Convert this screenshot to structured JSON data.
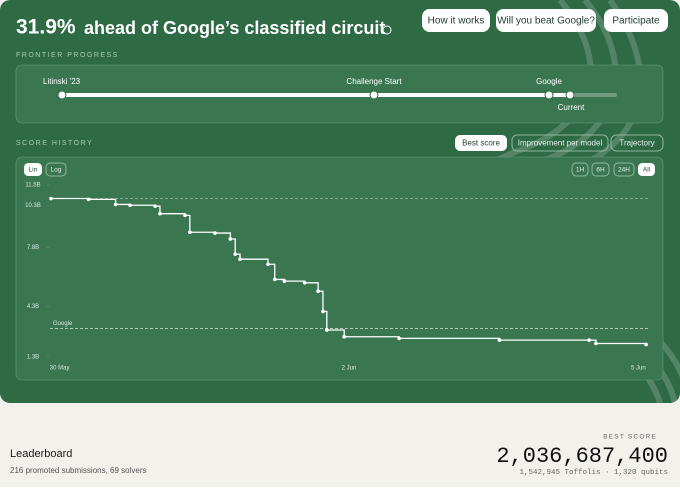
{
  "header": {
    "title_highlight": "31.9%",
    "title_rest": "ahead of Google’s classified circuit",
    "buttons": [
      "How it works",
      "Will you beat Google?",
      "Participate"
    ]
  },
  "frontier": {
    "label": "FRONTIER PROGRESS",
    "milestones": [
      "Litinski '23",
      "Challenge Start",
      "Google",
      "Current"
    ]
  },
  "chart_tabs": [
    "Best score",
    "Improvement per model",
    "Trajectory"
  ],
  "scale_buttons": [
    "Lin",
    "Log"
  ],
  "range_buttons": [
    "1H",
    "6H",
    "24H",
    "All"
  ],
  "chart_data": {
    "type": "line",
    "title": "SCORE HISTORY",
    "x": [
      -0.09,
      0.3,
      0.58,
      0.73,
      0.99,
      1.04,
      1.3,
      1.35,
      1.61,
      1.77,
      1.82,
      1.87,
      2.16,
      2.23,
      2.33,
      2.54,
      2.68,
      2.73,
      2.77,
      2.95,
      3.52,
      4.56,
      5.49,
      5.56,
      6.08
    ],
    "series": [
      {
        "name": "Best score",
        "color": "#ffffff",
        "values": [
          10.7,
          10.65,
          10.35,
          10.3,
          10.25,
          9.8,
          9.7,
          8.7,
          8.65,
          8.3,
          7.4,
          7.1,
          6.8,
          5.9,
          5.8,
          5.7,
          5.2,
          4.0,
          2.9,
          2.5,
          2.4,
          2.3,
          2.3,
          2.1,
          2.04
        ]
      }
    ],
    "xlim": [
      -0.1,
      6.1
    ],
    "xticks": [
      {
        "value": 0,
        "label": "30 May"
      },
      {
        "value": 3,
        "label": "2 Jun"
      },
      {
        "value": 6,
        "label": "5 Jun"
      }
    ],
    "ylim": [
      1.0,
      11.8
    ],
    "yticks": [
      {
        "value": 11.5,
        "label": "11.5B"
      },
      {
        "value": 10.3,
        "label": "10.3B"
      },
      {
        "value": 7.8,
        "label": "7.8B"
      },
      {
        "value": 4.3,
        "label": "4.3B"
      },
      {
        "value": 1.3,
        "label": "1.3B"
      }
    ],
    "references": [
      {
        "label": "Google",
        "value": 2.99
      }
    ]
  },
  "leaderboard": {
    "title": "Leaderboard",
    "subtitle": "216 promoted submissions, 69 solvers",
    "best_label": "BEST SCORE",
    "best_value": "2,036,687,400",
    "best_detail": "1,542,945 Toffolis · 1,320 qubits"
  }
}
